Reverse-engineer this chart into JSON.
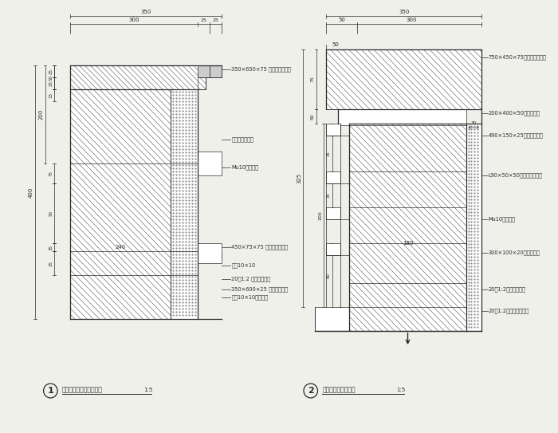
{
  "bg_color": "#f0f0eb",
  "lc": "#2a2a2a",
  "title1": "特色木景墙体立柱剖面图",
  "title2": "特色木景墙体剖面图",
  "scale": "1:5",
  "labels_left": [
    "350×650×75 磁砖面九寸新砖",
    "花岗岩磨光大面",
    "Mu10砌块砖砌",
    "450×75×75 磁砖面九寸新砖",
    "勾缝10×10",
    "20厚1:2 水泥沙浆粉平",
    "350×600×25 金属幕墙底板",
    "幕墙10×10型里支里"
  ],
  "labels_right": [
    "750×450×75磁砖磨光大面层",
    "200×400×50彩色砖大面",
    "490×150×25金属幕墙剖面",
    "L90×50×50型铝型大面草坪",
    "Mu10砌块砖砌",
    "300×100×20黑网铝幕墙",
    "20厚1:2水泥沙浆粉平",
    "20厚1:2水泥沙浆找平层"
  ]
}
